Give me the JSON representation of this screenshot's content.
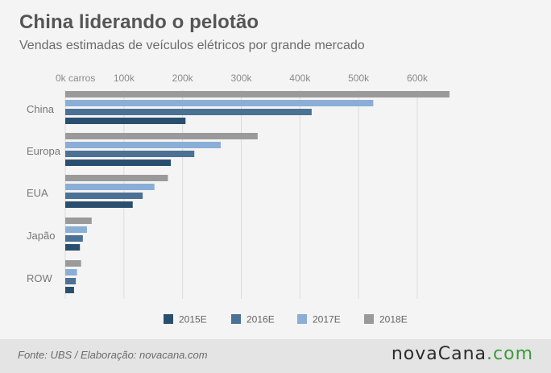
{
  "header": {
    "title": "China liderando o pelotão",
    "subtitle": "Vendas estimadas de veículos elétricos por grande mercado"
  },
  "footer": {
    "source": "Fonte:  UBS / Elaboração: novacana.com",
    "logo": {
      "part1": "nova",
      "part2": "Cana",
      "part3": ".com"
    }
  },
  "colors": {
    "2015E": "#2a4f6e",
    "2016E": "#4b7195",
    "2017E": "#8aaed6",
    "2018E": "#9a9a9a",
    "grid": "#dcdcdc",
    "label": "#777777"
  },
  "chart_data": {
    "type": "bar",
    "orientation": "horizontal",
    "categories": [
      "China",
      "Europa",
      "EUA",
      "Japão",
      "ROW"
    ],
    "series": [
      {
        "name": "2015E",
        "values": [
          205000,
          180000,
          115000,
          25000,
          15000
        ]
      },
      {
        "name": "2016E",
        "values": [
          420000,
          220000,
          132000,
          30000,
          18000
        ]
      },
      {
        "name": "2017E",
        "values": [
          525000,
          265000,
          152000,
          37000,
          20000
        ]
      },
      {
        "name": "2018E",
        "values": [
          655000,
          328000,
          175000,
          45000,
          27000
        ]
      }
    ],
    "bar_order_top_to_bottom": [
      "2018E",
      "2017E",
      "2016E",
      "2015E"
    ],
    "x_ticks": [
      {
        "value": 0,
        "label": "0k carros"
      },
      {
        "value": 100000,
        "label": "100k"
      },
      {
        "value": 200000,
        "label": "200k"
      },
      {
        "value": 300000,
        "label": "300k"
      },
      {
        "value": 400000,
        "label": "400k"
      },
      {
        "value": 500000,
        "label": "500k"
      },
      {
        "value": 600000,
        "label": "600k"
      }
    ],
    "xlim": [
      0,
      660000
    ],
    "grid": true,
    "legend_position": "bottom",
    "legend_order": [
      "2015E",
      "2016E",
      "2017E",
      "2018E"
    ]
  }
}
